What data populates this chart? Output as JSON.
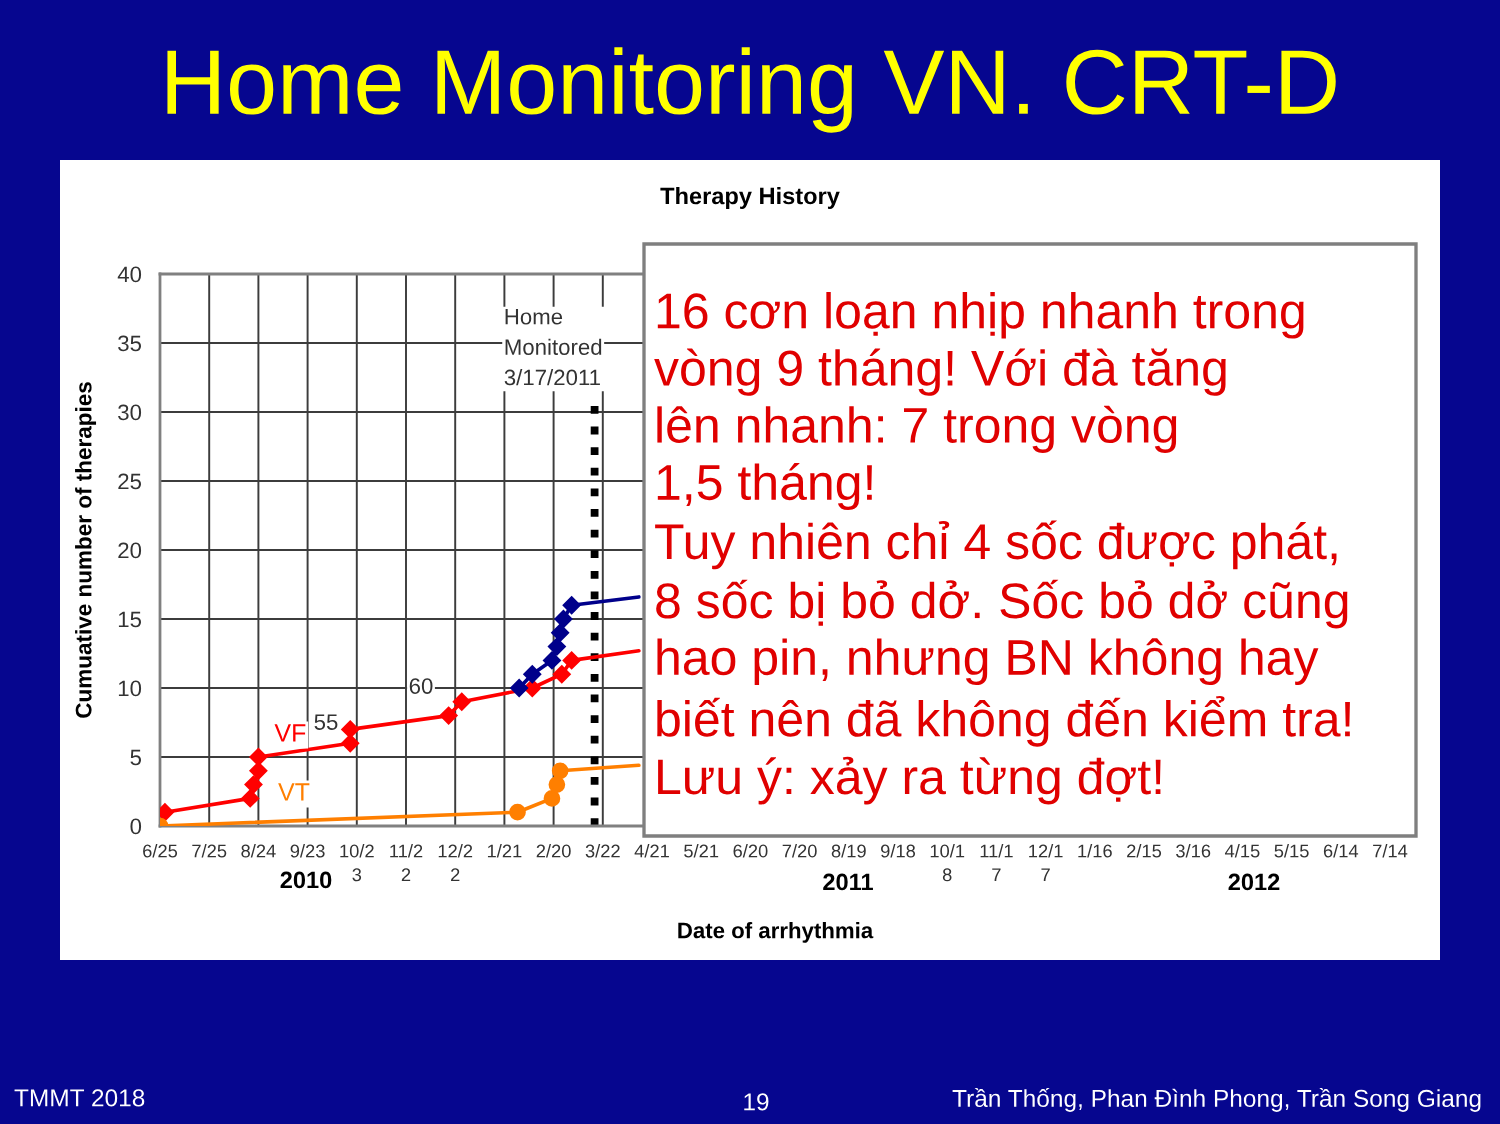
{
  "chart_data": {
    "type": "line",
    "title": "Home Monitoring VN. CRT-D",
    "subtitle": "Therapy History",
    "xlabel": "Date of arrhythmia",
    "ylabel": "Cumuative number of therapies",
    "xlim": [
      "2010-06-25",
      "2012-07-14"
    ],
    "xticks": [
      {
        "value": "2010-06-25",
        "label": "6/25"
      },
      {
        "value": "2010-07-25",
        "label": "7/25"
      },
      {
        "value": "2010-08-24",
        "label": "8/24"
      },
      {
        "value": "2010-09-23",
        "label": "9/23"
      },
      {
        "value": "2010-10-23",
        "label": "10/23"
      },
      {
        "value": "2010-11-22",
        "label": "11/22"
      },
      {
        "value": "2010-12-22",
        "label": "12/22"
      },
      {
        "value": "2011-01-21",
        "label": "1/21"
      },
      {
        "value": "2011-02-20",
        "label": "2/20"
      },
      {
        "value": "2011-03-22",
        "label": "3/22"
      },
      {
        "value": "2011-04-21",
        "label": "4/21"
      },
      {
        "value": "2011-05-21",
        "label": "5/21"
      },
      {
        "value": "2011-06-20",
        "label": "6/20"
      },
      {
        "value": "2011-07-20",
        "label": "7/20"
      },
      {
        "value": "2011-08-19",
        "label": "8/19"
      },
      {
        "value": "2011-09-18",
        "label": "9/18"
      },
      {
        "value": "2011-10-18",
        "label": "10/18"
      },
      {
        "value": "2011-11-17",
        "label": "11/17"
      },
      {
        "value": "2011-12-17",
        "label": "12/17"
      },
      {
        "value": "2012-01-16",
        "label": "1/16"
      },
      {
        "value": "2012-02-15",
        "label": "2/15"
      },
      {
        "value": "2012-03-16",
        "label": "3/16"
      },
      {
        "value": "2012-04-15",
        "label": "4/15"
      },
      {
        "value": "2012-05-15",
        "label": "5/15"
      },
      {
        "value": "2012-06-14",
        "label": "6/14"
      },
      {
        "value": "2012-07-14",
        "label": "7/14"
      }
    ],
    "ylim": [
      0,
      40
    ],
    "yticks": [
      0,
      5,
      10,
      15,
      20,
      25,
      30,
      35,
      40
    ],
    "grid": true,
    "marker": "diamond",
    "series": [
      {
        "name": "VF",
        "color": "#ff0000",
        "x": [
          "2010-06-28",
          "2010-08-19",
          "2010-08-21",
          "2010-08-24",
          "2010-08-24",
          "2010-10-19",
          "2010-10-19",
          "2010-12-18",
          "2010-12-26",
          "2011-02-07",
          "2011-02-25",
          "2011-03-03",
          "2011-04-13"
        ],
        "values": [
          1,
          2,
          3,
          4,
          5,
          6,
          7,
          8,
          9,
          10,
          11,
          12,
          12.7
        ]
      },
      {
        "name": "VT",
        "color": "#ff7f00",
        "marker": "circle",
        "x": [
          "2010-06-25",
          "2011-01-29",
          "2011-02-19",
          "2011-02-22",
          "2011-02-24",
          "2011-04-13"
        ],
        "values": [
          0,
          1,
          2,
          3,
          4,
          4.4
        ]
      },
      {
        "color": "#00008b",
        "x": [
          "2011-01-30",
          "2011-02-07",
          "2011-02-19",
          "2011-02-22",
          "2011-02-24",
          "2011-02-26",
          "2011-03-03",
          "2011-04-13"
        ],
        "values": [
          10,
          11,
          12,
          13,
          14,
          15,
          16,
          16.6
        ]
      }
    ],
    "ref_lines": [
      {
        "axis": "x",
        "value": "2011-03-17",
        "label": "Home\nMonitored\n3/17/2011",
        "color": "#000000",
        "line_style": "dotted"
      }
    ],
    "annotations": [
      "55",
      "60",
      "2010",
      "2011",
      "2012",
      "16 cơn loạn nhịp nhanh trong\nvòng 9 tháng! Với đà tăng\nlên nhanh: 7 trong vòng\n1,5 tháng!\nTuy nhiên chỉ 4 sốc được phát,\n8 sốc bị bỏ dở. Sốc bỏ dở cũng\nhao pin, nhưng BN không hay\nbiết nên đã không đến kiểm tra!\nLưu ý: xảy ra từng đợt!",
      "TMMT 2018",
      "19",
      "Trần Thống, Phan Đình Phong, Trần Song Giang"
    ]
  }
}
